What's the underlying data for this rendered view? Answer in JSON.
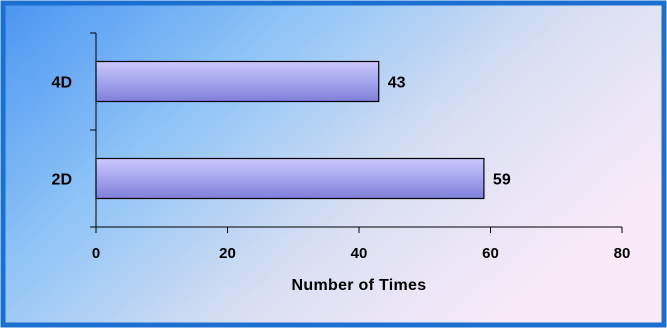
{
  "chart_data": {
    "type": "bar",
    "orientation": "horizontal",
    "categories": [
      "4D",
      "2D"
    ],
    "values": [
      43,
      59
    ],
    "data_labels": [
      "43",
      "59"
    ],
    "xlabel": "Number of Times",
    "ylabel": "",
    "xlim": [
      0,
      80
    ],
    "xticks": [
      "0",
      "20",
      "40",
      "60",
      "80"
    ],
    "grid": false,
    "legend": "none"
  },
  "colors": {
    "frame_border": "#1a6fd0",
    "bar_fill_light": "#c9c9fb",
    "bar_fill_dark": "#7f7fd9",
    "bar_stroke": "#000000",
    "background_left": "#58a2f6",
    "background_right": "#f8eaf8"
  }
}
